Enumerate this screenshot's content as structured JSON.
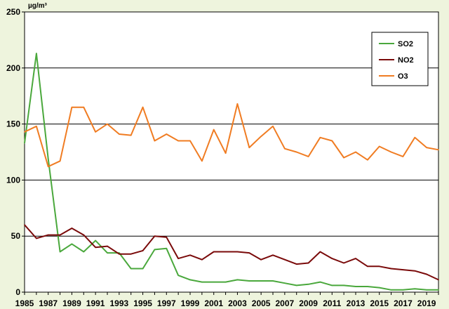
{
  "chart_data": {
    "type": "line",
    "unit_label": "µg/m³",
    "x": [
      1985,
      1986,
      1987,
      1988,
      1989,
      1990,
      1991,
      1992,
      1993,
      1994,
      1995,
      1996,
      1997,
      1998,
      1999,
      2000,
      2001,
      2002,
      2003,
      2004,
      2005,
      2006,
      2007,
      2008,
      2009,
      2010,
      2011,
      2012,
      2013,
      2014,
      2015,
      2016,
      2017,
      2018,
      2019,
      2020
    ],
    "x_tick_labels": [
      "1985",
      "1987",
      "1989",
      "1991",
      "1993",
      "1995",
      "1997",
      "1999",
      "2001",
      "2003",
      "2005",
      "2007",
      "2009",
      "2011",
      "2013",
      "2015",
      "2017",
      "2019"
    ],
    "y_tick_labels": [
      "0",
      "50",
      "100",
      "150",
      "200",
      "250"
    ],
    "ylim": [
      0,
      250
    ],
    "grid": "horizontal",
    "legend_position": "top-right",
    "series": [
      {
        "name": "SO2",
        "color": "#4aa83c",
        "values": [
          133,
          213,
          119,
          36,
          43,
          36,
          46,
          35,
          35,
          21,
          21,
          38,
          39,
          15,
          11,
          9,
          9,
          9,
          11,
          10,
          10,
          10,
          8,
          6,
          7,
          9,
          6,
          6,
          5,
          5,
          4,
          2,
          2,
          3,
          2,
          2
        ]
      },
      {
        "name": "NO2",
        "color": "#7a0a0a",
        "values": [
          60,
          48,
          51,
          51,
          57,
          51,
          40,
          41,
          34,
          34,
          37,
          50,
          49,
          30,
          33,
          29,
          36,
          36,
          36,
          35,
          29,
          33,
          29,
          25,
          26,
          36,
          30,
          26,
          30,
          23,
          23,
          21,
          20,
          19,
          16,
          11
        ]
      },
      {
        "name": "O3",
        "color": "#f07c22",
        "values": [
          143,
          148,
          112,
          117,
          165,
          165,
          143,
          150,
          141,
          140,
          165,
          135,
          141,
          135,
          135,
          117,
          145,
          124,
          168,
          129,
          139,
          148,
          128,
          125,
          121,
          138,
          135,
          120,
          125,
          118,
          130,
          125,
          121,
          138,
          129,
          127
        ]
      }
    ]
  }
}
